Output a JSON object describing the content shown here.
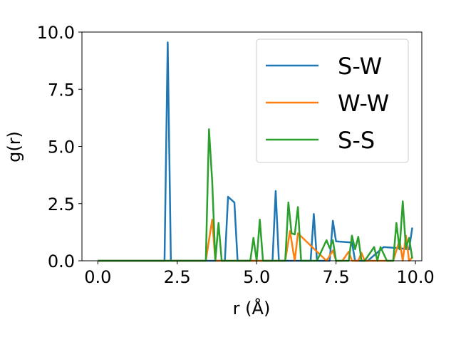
{
  "chart_data": {
    "type": "line",
    "title": "",
    "xlabel": "r (Å)",
    "ylabel": "g(r)",
    "xlim": [
      -0.5,
      10.2
    ],
    "ylim": [
      0,
      10
    ],
    "x_ticks": [
      "0.0",
      "2.5",
      "5.0",
      "7.5",
      "10.0"
    ],
    "y_ticks": [
      "0.0",
      "2.5",
      "5.0",
      "7.5",
      "10.0"
    ],
    "grid": false,
    "legend_position": "upper-right",
    "series": [
      {
        "name": "S-W",
        "color": "#1f77b4",
        "x": [
          0.0,
          2.1,
          2.2,
          2.3,
          4.0,
          4.1,
          4.3,
          4.4,
          5.5,
          5.6,
          5.7,
          6.7,
          6.8,
          6.9,
          7.3,
          7.4,
          7.5,
          8.0,
          8.1,
          8.5,
          9.0,
          9.5,
          9.8,
          9.9
        ],
        "y": [
          0.0,
          0.0,
          9.55,
          0.0,
          0.0,
          2.8,
          2.55,
          0.0,
          0.0,
          3.05,
          0.0,
          0.0,
          2.05,
          0.0,
          0.0,
          1.75,
          0.85,
          0.8,
          0.0,
          0.0,
          0.6,
          0.55,
          0.5,
          1.45
        ]
      },
      {
        "name": "W-W",
        "color": "#ff7f0e",
        "x": [
          0.0,
          3.4,
          3.6,
          3.7,
          5.9,
          6.05,
          6.2,
          6.3,
          7.2,
          7.4,
          7.5,
          7.7,
          7.9,
          8.0,
          8.2,
          8.3,
          8.4,
          9.3,
          9.5,
          9.6,
          9.7,
          9.8,
          9.9
        ],
        "y": [
          0.0,
          0.0,
          1.8,
          0.0,
          0.0,
          1.3,
          0.0,
          1.2,
          0.0,
          0.45,
          0.0,
          0.0,
          0.4,
          0.0,
          0.0,
          0.35,
          0.0,
          0.0,
          0.9,
          0.0,
          1.1,
          0.0,
          0.15
        ]
      },
      {
        "name": "S-S",
        "color": "#2ca02c",
        "x": [
          0.0,
          3.4,
          3.5,
          3.6,
          3.7,
          3.8,
          3.9,
          4.8,
          4.9,
          5.0,
          5.1,
          5.2,
          5.3,
          5.9,
          6.0,
          6.1,
          6.2,
          6.3,
          6.4,
          6.5,
          6.9,
          7.2,
          7.3,
          7.4,
          7.5,
          7.9,
          8.0,
          8.1,
          8.2,
          8.3,
          8.4,
          8.7,
          8.8,
          8.9,
          9.1,
          9.3,
          9.4,
          9.5,
          9.6,
          9.7,
          9.8,
          9.9
        ],
        "y": [
          0.0,
          0.0,
          5.75,
          3.5,
          0.0,
          1.65,
          0.0,
          0.0,
          1.0,
          0.0,
          1.8,
          0.0,
          0.0,
          0.0,
          2.55,
          1.2,
          1.15,
          2.35,
          0.0,
          0.0,
          0.0,
          0.9,
          0.55,
          0.9,
          0.0,
          0.0,
          1.1,
          0.5,
          1.05,
          0.0,
          0.0,
          0.6,
          0.0,
          0.6,
          0.0,
          0.0,
          1.65,
          0.5,
          2.6,
          0.55,
          1.0,
          0.1
        ]
      }
    ]
  }
}
